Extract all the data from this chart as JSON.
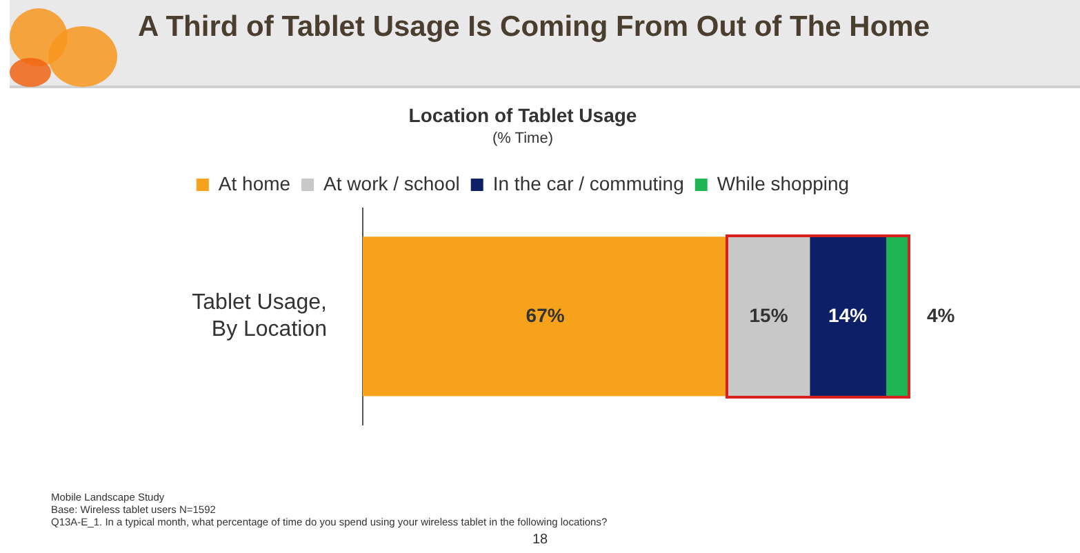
{
  "chart_data": {
    "type": "bar",
    "orientation": "horizontal",
    "stacked": true,
    "legend": "top",
    "title": "Location of Tablet Usage",
    "subtitle": "(% Time)",
    "categories": [
      "Tablet Usage, By Location"
    ],
    "series": [
      {
        "name": "At home",
        "color": "#f7a21b",
        "values": [
          67
        ],
        "value_labels": [
          "67%"
        ]
      },
      {
        "name": "At work / school",
        "color": "#c8c8c8",
        "values": [
          15
        ],
        "value_labels": [
          "15%"
        ]
      },
      {
        "name": "In the car / commuting",
        "color": "#0d1f66",
        "values": [
          14
        ],
        "value_labels": [
          "14%"
        ]
      },
      {
        "name": "While shopping",
        "color": "#1fb554",
        "values": [
          4
        ],
        "value_labels": [
          "4%"
        ]
      }
    ],
    "annotations": [
      "A Third of Tablet Usage Is Coming From Out of The Home",
      "Mobile Landscape Study",
      "Base: Wireless tablet users N=1592",
      "Q13A-E_1. In a typical month, what percentage of time do you spend using your wireless tablet in the following locations?",
      "18"
    ]
  }
}
